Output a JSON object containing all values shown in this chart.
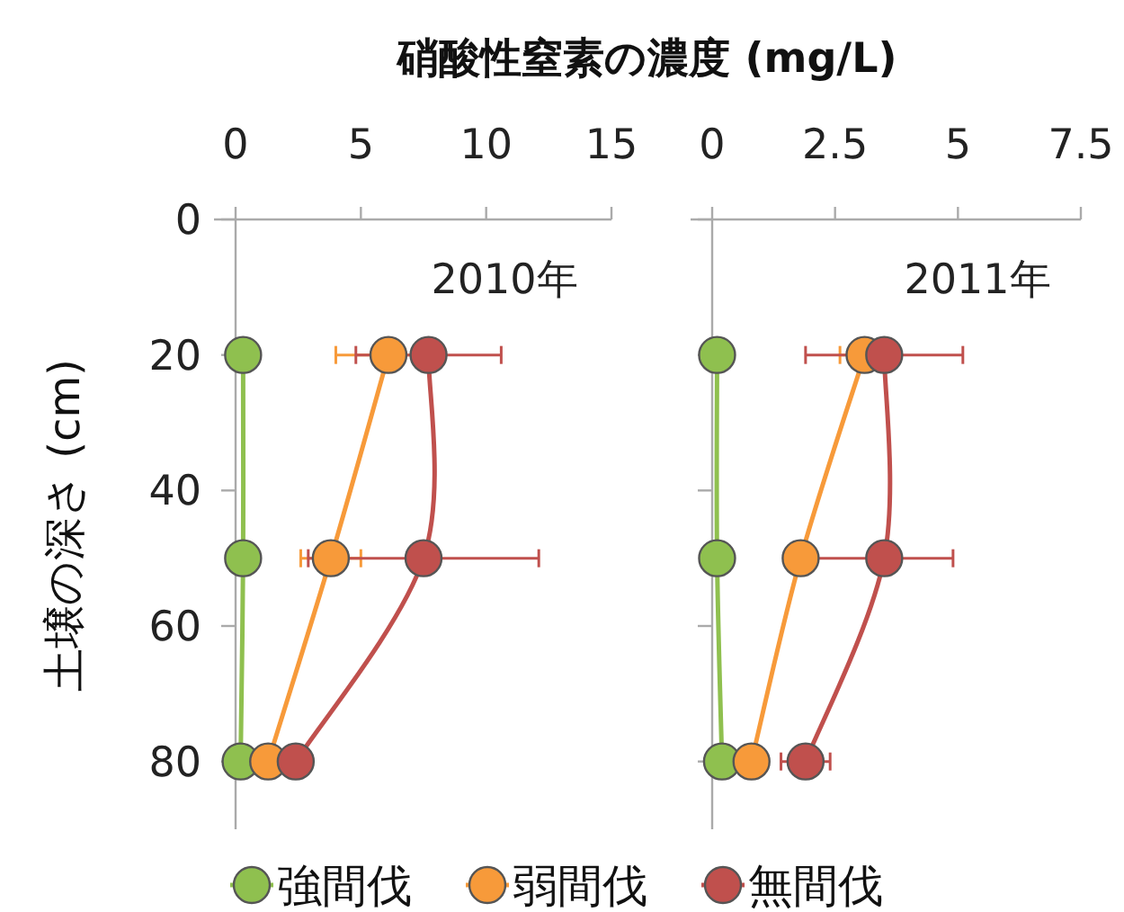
{
  "chart_data": [
    {
      "type": "line",
      "title": "硝酸性窒素の濃度 (mg/L)",
      "ylabel": "土壌の深さ (cm)",
      "annotations": [
        "2010年"
      ],
      "xlim": [
        0,
        15
      ],
      "xticks": [
        0,
        5,
        10,
        15
      ],
      "ylim": [
        90,
        0
      ],
      "yticks": [
        0,
        20,
        40,
        60,
        80
      ],
      "marker": "circle",
      "legend": "bottom",
      "grid": false,
      "series": [
        {
          "name": "強間伐",
          "color": "#8fc04f",
          "x": [
            0.3,
            0.3,
            0.2
          ],
          "values": [
            20,
            50,
            80
          ]
        },
        {
          "name": "弱間伐",
          "color": "#f79a3a",
          "x": [
            6.1,
            3.8,
            1.3
          ],
          "values": [
            20,
            50,
            80
          ],
          "xerrors": [
            2.1,
            1.2,
            null
          ]
        },
        {
          "name": "無間伐",
          "color": "#c0504d",
          "x": [
            7.7,
            7.5,
            2.4
          ],
          "values": [
            20,
            50,
            80
          ],
          "xerrors": [
            2.9,
            4.6,
            null
          ]
        }
      ]
    },
    {
      "type": "line",
      "annotations": [
        "2011年"
      ],
      "xlim": [
        0,
        7.5
      ],
      "xticks": [
        0,
        {
          "value": 2.5,
          "label": "2.5"
        },
        5,
        {
          "value": 7.5,
          "label": "7.5"
        }
      ],
      "ylim": [
        90,
        0
      ],
      "yticks": [
        0,
        20,
        40,
        60,
        80
      ],
      "tick_labels": "x",
      "marker": "circle",
      "legend": false,
      "grid": false,
      "series": [
        {
          "color": "#8fc04f",
          "x": [
            0.1,
            0.1,
            0.2
          ],
          "values": [
            20,
            50,
            80
          ]
        },
        {
          "color": "#f79a3a",
          "x": [
            3.1,
            1.8,
            0.8
          ],
          "values": [
            20,
            50,
            80
          ],
          "xerrors": [
            0.5,
            null,
            null
          ]
        },
        {
          "color": "#c0504d",
          "x": [
            3.5,
            3.5,
            1.9
          ],
          "values": [
            20,
            50,
            80
          ],
          "xerrors": [
            1.6,
            1.4,
            0.5
          ]
        }
      ]
    }
  ]
}
